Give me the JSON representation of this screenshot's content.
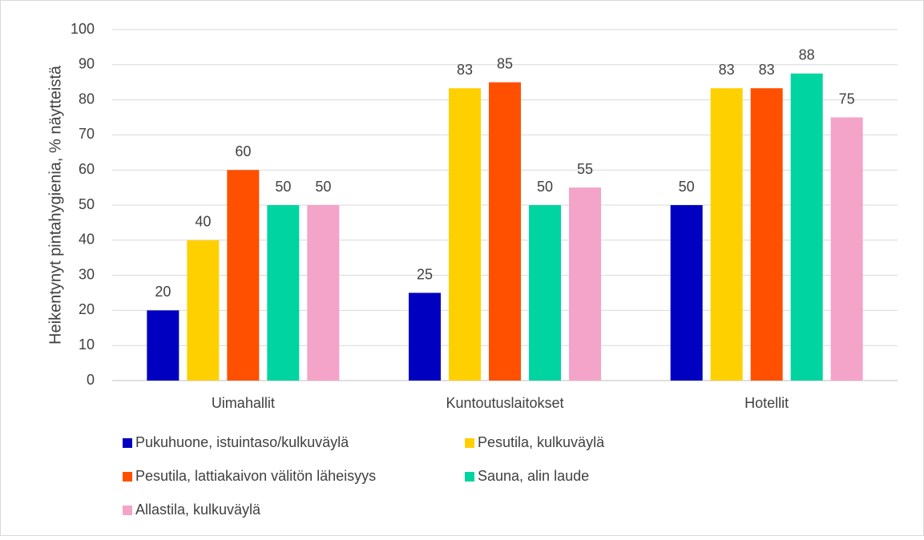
{
  "chart_data": {
    "type": "bar",
    "y_label": "Heikentynyt pintahygienia, % näytteistä",
    "categories": [
      "Uimahallit",
      "Kuntoutuslaitokset",
      "Hotellit"
    ],
    "series": [
      {
        "name": "Pukuhuone, istuintaso/kulkuväylä",
        "color": "#0000c0",
        "values": [
          20,
          25,
          50
        ]
      },
      {
        "name": "Pesutila, kulkuväylä",
        "color": "#ffd000",
        "values": [
          40,
          83.3,
          83.3
        ],
        "value_labels": [
          "40",
          "83",
          "83"
        ]
      },
      {
        "name": "Pesutila, lattiakaivon välitön läheisyys",
        "color": "#ff5000",
        "values": [
          60,
          85,
          83.3
        ],
        "value_labels": [
          "60",
          "85",
          "83"
        ]
      },
      {
        "name": "Sauna, alin laude",
        "color": "#00d4a0",
        "values": [
          50,
          50,
          87.5
        ],
        "value_labels": [
          "50",
          "50",
          "88"
        ]
      },
      {
        "name": "Allastila, kulkuväylä",
        "color": "#f4a4c8",
        "values": [
          50,
          55,
          75
        ]
      }
    ],
    "ylim": [
      0,
      100
    ],
    "yticks": [
      0,
      10,
      20,
      30,
      40,
      50,
      60,
      70,
      80,
      90,
      100
    ],
    "grid": true
  }
}
